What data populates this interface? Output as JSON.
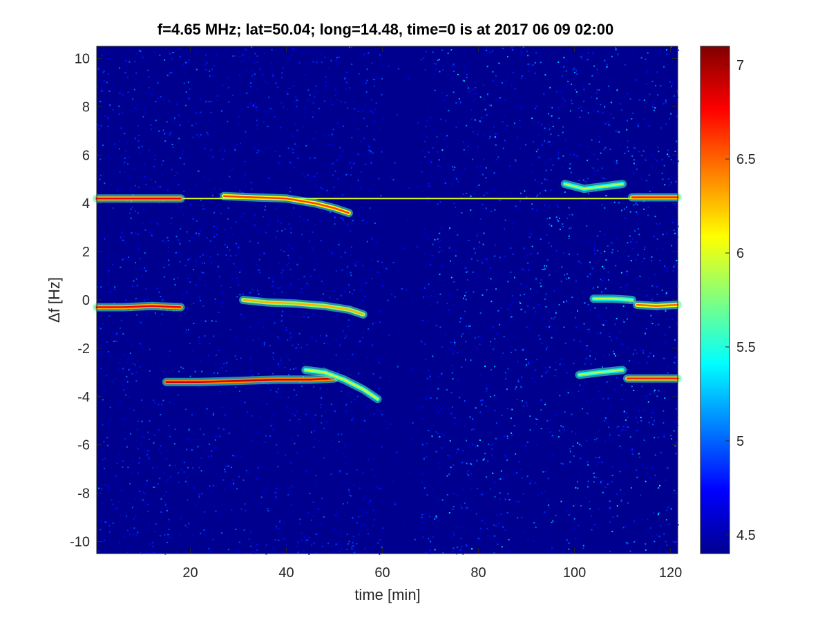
{
  "chart_data": {
    "type": "heatmap",
    "title": "f=4.65 MHz;  lat=50.04; long=14.48, time=0 is at 2017 06 09 02:00",
    "xlabel": "time [min]",
    "ylabel": "Δf [Hz]",
    "xlim": [
      0.5,
      121.5
    ],
    "ylim": [
      -10.5,
      10.5
    ],
    "xticks": [
      20,
      40,
      60,
      80,
      100,
      120
    ],
    "yticks": [
      10,
      8,
      6,
      4,
      2,
      0,
      -2,
      -4,
      -6,
      -8,
      -10
    ],
    "colormap": "jet",
    "colorbar": {
      "range": [
        4.4,
        7.1
      ],
      "ticks": [
        4.5,
        5,
        5.5,
        6,
        6.5,
        7
      ]
    },
    "background_level": 4.55,
    "carrier_line": {
      "y": 4.2,
      "x_start": 0.5,
      "x_end": 121.5,
      "value": 6.0
    },
    "traces": [
      {
        "x": [
          0.5,
          5,
          10,
          15,
          18
        ],
        "y": [
          4.2,
          4.2,
          4.2,
          4.2,
          4.2
        ],
        "value": 6.8
      },
      {
        "x": [
          27,
          33,
          40,
          46,
          50,
          53
        ],
        "y": [
          4.3,
          4.25,
          4.2,
          4.0,
          3.8,
          3.6
        ],
        "value": 6.6
      },
      {
        "x": [
          112,
          116,
          121.5
        ],
        "y": [
          4.25,
          4.25,
          4.25
        ],
        "value": 6.7
      },
      {
        "x": [
          98,
          102,
          106,
          110
        ],
        "y": [
          4.8,
          4.6,
          4.7,
          4.8
        ],
        "value": 5.9
      },
      {
        "x": [
          0.5,
          6,
          12,
          18
        ],
        "y": [
          -0.3,
          -0.3,
          -0.25,
          -0.3
        ],
        "value": 6.8
      },
      {
        "x": [
          31,
          36,
          42,
          48,
          53,
          56
        ],
        "y": [
          0.0,
          -0.1,
          -0.15,
          -0.25,
          -0.4,
          -0.6
        ],
        "value": 6.3
      },
      {
        "x": [
          104,
          108,
          112
        ],
        "y": [
          0.05,
          0.05,
          0.0
        ],
        "value": 5.9
      },
      {
        "x": [
          113,
          117,
          121.5
        ],
        "y": [
          -0.2,
          -0.25,
          -0.2
        ],
        "value": 6.5
      },
      {
        "x": [
          15,
          22,
          30,
          38,
          45,
          50
        ],
        "y": [
          -3.4,
          -3.4,
          -3.35,
          -3.3,
          -3.3,
          -3.25
        ],
        "value": 6.9
      },
      {
        "x": [
          44,
          48,
          52,
          56,
          59
        ],
        "y": [
          -2.9,
          -3.0,
          -3.3,
          -3.7,
          -4.1
        ],
        "value": 6.0
      },
      {
        "x": [
          101,
          105,
          110
        ],
        "y": [
          -3.1,
          -3.0,
          -2.9
        ],
        "value": 5.9
      },
      {
        "x": [
          111,
          115,
          121.5
        ],
        "y": [
          -3.25,
          -3.25,
          -3.25
        ],
        "value": 6.7
      }
    ]
  }
}
